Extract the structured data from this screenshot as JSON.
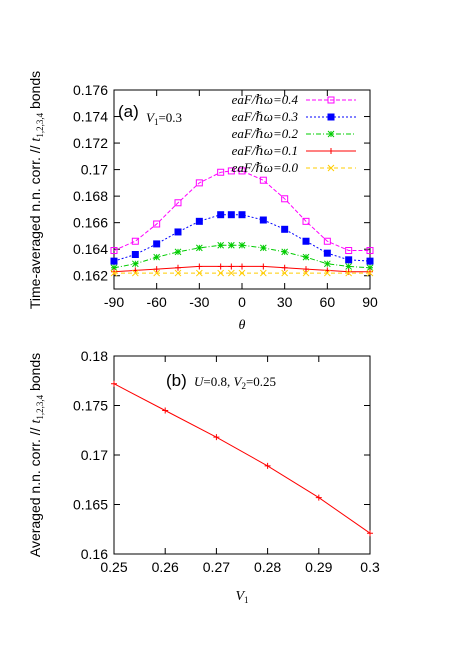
{
  "chart_data": [
    {
      "type": "line",
      "panel_label": "(a)",
      "annotation_var": "V",
      "annotation_sub": "1",
      "annotation_val": "=0.3",
      "ylabel_main": "Time-averaged n.n. corr. // ",
      "ylabel_t": "t",
      "ylabel_sub": "1,2,3,4",
      "ylabel_tail": " bonds",
      "xlabel": "θ",
      "xlim": [
        -90,
        90
      ],
      "ylim": [
        0.161,
        0.176
      ],
      "xticks": [
        -90,
        -60,
        -30,
        0,
        30,
        60,
        90
      ],
      "xtick_labels": [
        "-90",
        "-60",
        "-30",
        "0",
        "30",
        "60",
        "90"
      ],
      "yticks": [
        0.162,
        0.164,
        0.166,
        0.168,
        0.17,
        0.172,
        0.174,
        0.176
      ],
      "ytick_labels": [
        "0.162",
        "0.164",
        "0.166",
        "0.168",
        "0.17",
        "0.172",
        "0.174",
        "0.176"
      ],
      "grid": false,
      "legend_position": "top-right",
      "x": [
        -90,
        -75,
        -60,
        -45,
        -30,
        -15,
        -7.5,
        0,
        15,
        30,
        45,
        60,
        75,
        90
      ],
      "series": [
        {
          "name": "eaF/ℏω=0.4",
          "legend_prefix": "eaF/",
          "legend_suffix": "ω=0.4",
          "color": "#ff00ff",
          "marker": "square",
          "dash": "4,2",
          "values": [
            0.1639,
            0.1646,
            0.1659,
            0.1675,
            0.169,
            0.1698,
            0.1699,
            0.1699,
            0.1692,
            0.1678,
            0.1661,
            0.1646,
            0.1639,
            0.1639
          ]
        },
        {
          "name": "eaF/ℏω=0.3",
          "legend_prefix": "eaF/",
          "legend_suffix": "ω=0.3",
          "color": "#0000ff",
          "marker": "filled-square",
          "dash": "2,2",
          "values": [
            0.1631,
            0.1636,
            0.1644,
            0.1653,
            0.1661,
            0.1666,
            0.1666,
            0.1666,
            0.1662,
            0.1655,
            0.1646,
            0.1637,
            0.1632,
            0.1631
          ]
        },
        {
          "name": "eaF/ℏω=0.2",
          "legend_prefix": "eaF/",
          "legend_suffix": "ω=0.2",
          "color": "#00cc00",
          "marker": "asterisk",
          "dash": "5,2,1,2",
          "values": [
            0.1626,
            0.1629,
            0.1634,
            0.1638,
            0.1641,
            0.1643,
            0.1643,
            0.1643,
            0.1641,
            0.1638,
            0.1634,
            0.1629,
            0.1627,
            0.1626
          ]
        },
        {
          "name": "eaF/ℏω=0.1",
          "legend_prefix": "eaF/",
          "legend_suffix": "ω=0.1",
          "color": "#ff0000",
          "marker": "plus",
          "dash": "",
          "values": [
            0.1623,
            0.1624,
            0.1625,
            0.1626,
            0.1627,
            0.1627,
            0.1627,
            0.1627,
            0.1627,
            0.1626,
            0.1625,
            0.1624,
            0.1623,
            0.1623
          ]
        },
        {
          "name": "eaF/ℏω=0.0",
          "legend_prefix": "eaF/",
          "legend_suffix": "ω=0.0",
          "color": "#ffcc00",
          "marker": "cross",
          "dash": "4,3",
          "values": [
            0.1622,
            0.1622,
            0.1622,
            0.1622,
            0.1622,
            0.1622,
            0.1622,
            0.1622,
            0.1622,
            0.1622,
            0.1622,
            0.1622,
            0.1622,
            0.1622
          ]
        }
      ]
    },
    {
      "type": "line",
      "panel_label": "(b)",
      "annotation": "U=0.8, V",
      "annotation_parts": {
        "u": "U",
        "u_val": "=0.8, ",
        "v": "V",
        "v_sub": "2",
        "v_val": "=0.25"
      },
      "ylabel_main": "Averaged n.n. corr. // ",
      "ylabel_t": "t",
      "ylabel_sub": "1,2,3,4",
      "ylabel_tail": " bonds",
      "xlabel_var": "V",
      "xlabel_sub": "1",
      "xlim": [
        0.25,
        0.3
      ],
      "ylim": [
        0.16,
        0.18
      ],
      "xticks": [
        0.25,
        0.26,
        0.27,
        0.28,
        0.29,
        0.3
      ],
      "xtick_labels": [
        "0.25",
        "0.26",
        "0.27",
        "0.28",
        "0.29",
        "0.3"
      ],
      "yticks": [
        0.16,
        0.165,
        0.17,
        0.175,
        0.18
      ],
      "ytick_labels": [
        "0.16",
        "0.165",
        "0.17",
        "0.175",
        "0.18"
      ],
      "grid": false,
      "series": [
        {
          "color": "#ff0000",
          "marker": "plus",
          "x": [
            0.25,
            0.26,
            0.27,
            0.28,
            0.29,
            0.3
          ],
          "values": [
            0.1772,
            0.1745,
            0.1718,
            0.1689,
            0.1657,
            0.1621
          ]
        }
      ]
    }
  ]
}
